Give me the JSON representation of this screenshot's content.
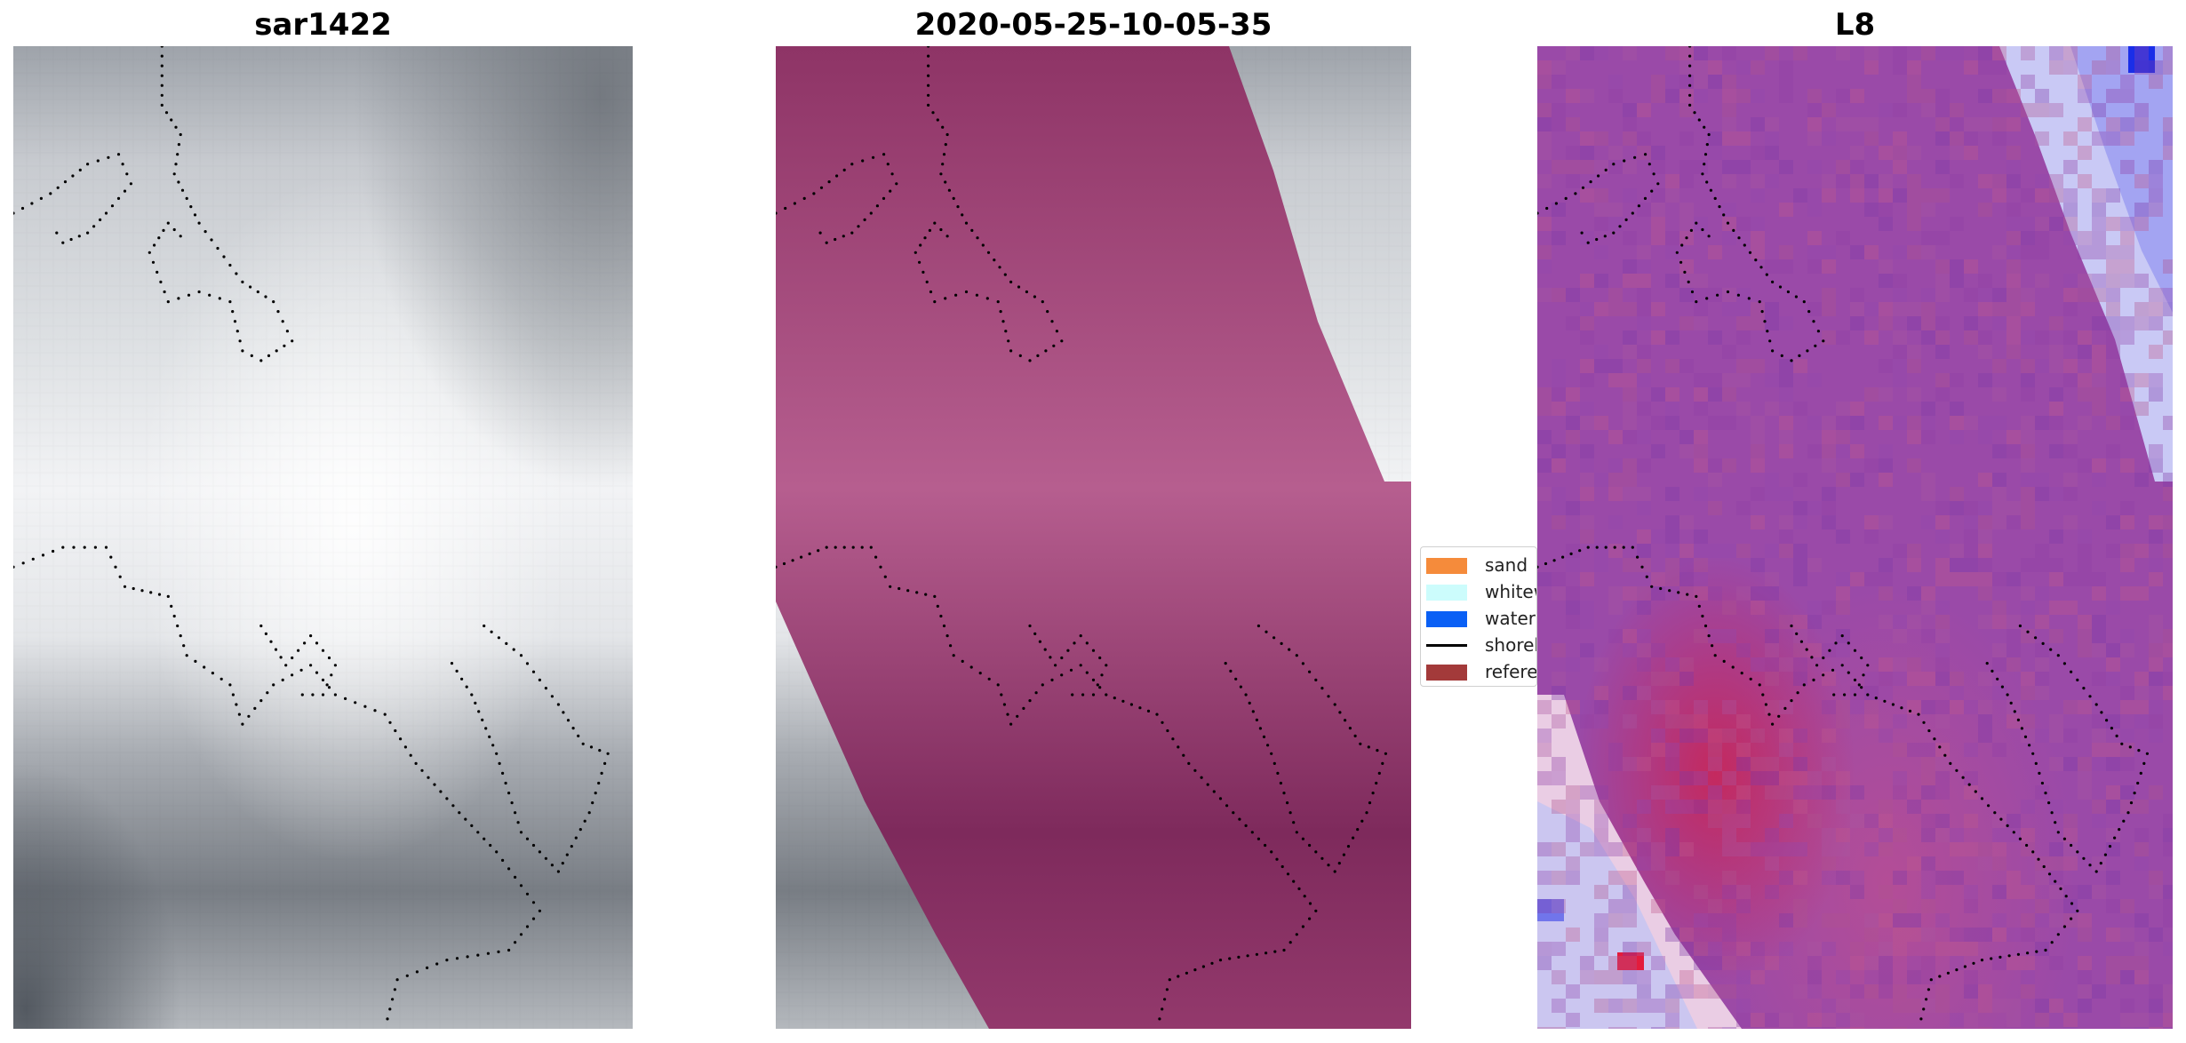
{
  "panels": [
    {
      "title": "sar1422"
    },
    {
      "title": "2020-05-25-10-05-35"
    },
    {
      "title": "L8"
    }
  ],
  "legend": {
    "items": [
      {
        "label": "sand",
        "color": "#f58b3b",
        "kind": "patch"
      },
      {
        "label": "whitew",
        "color": "#ccfcfc",
        "kind": "patch"
      },
      {
        "label": "water",
        "color": "#0a60f5",
        "kind": "patch"
      },
      {
        "label": "shoreli",
        "color": "#000000",
        "kind": "line"
      },
      {
        "label": "referen",
        "color": "#a33a3a",
        "kind": "patch"
      }
    ]
  },
  "colors": {
    "sar_gray_light": "#eef0f2",
    "sar_gray_dark": "#5a6068",
    "overlay_magenta": "#a8447a",
    "l8_purple": "#9a4aa8",
    "l8_red": "#d21e46",
    "l8_blue": "#3446f0",
    "shoreline_dots": "#000000"
  }
}
